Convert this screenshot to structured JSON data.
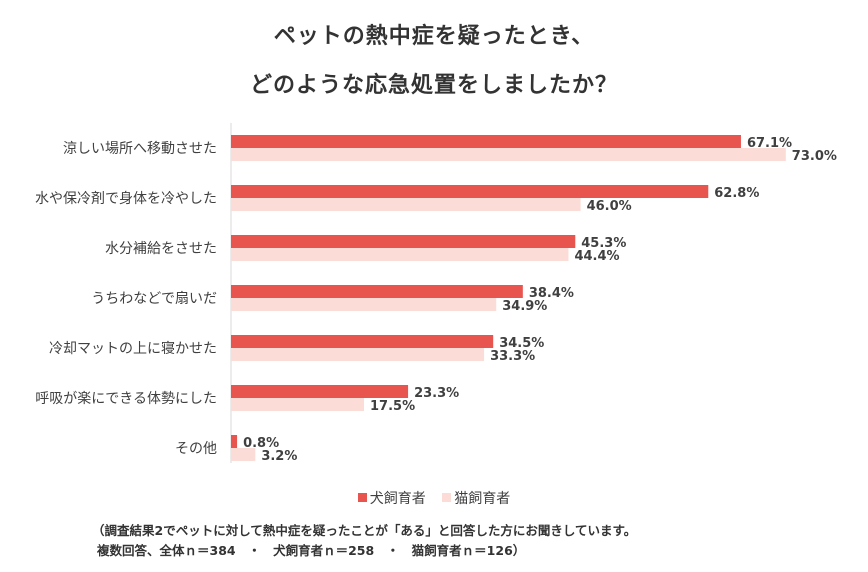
{
  "title_line1": "ペットの熱中症を疑ったとき、",
  "title_line2": "どのような応急処置をしましたか？",
  "legend": {
    "dog": "犬飼育者",
    "cat": "猫飼育者"
  },
  "colors": {
    "dog": "#e8554f",
    "cat": "#fbdcd6",
    "axis": "#d9d9d9"
  },
  "note_line1": "（調査結果2でペットに対して熱中症を疑ったことが「ある」と回答した方にお聞きしています。",
  "note_line2": "複数回答、全体ｎ＝384　・　犬飼育者ｎ＝258　・　猫飼育者ｎ＝126）",
  "chart_data": {
    "type": "bar",
    "orientation": "horizontal",
    "title": "ペットの熱中症を疑ったとき、どのような応急処置をしましたか？",
    "categories": [
      "涼しい場所へ移動させた",
      "水や保冷剤で身体を冷やした",
      "水分補給をさせた",
      "うちわなどで扇いだ",
      "冷却マットの上に寝かせた",
      "呼吸が楽にできる体勢にした",
      "その他"
    ],
    "series": [
      {
        "name": "犬飼育者",
        "values": [
          67.1,
          62.8,
          45.3,
          38.4,
          34.5,
          23.3,
          0.8
        ]
      },
      {
        "name": "猫飼育者",
        "values": [
          73.0,
          46.0,
          44.4,
          34.9,
          33.3,
          17.5,
          3.2
        ]
      }
    ],
    "value_format": "%",
    "legend_position": "bottom",
    "grid": false
  }
}
